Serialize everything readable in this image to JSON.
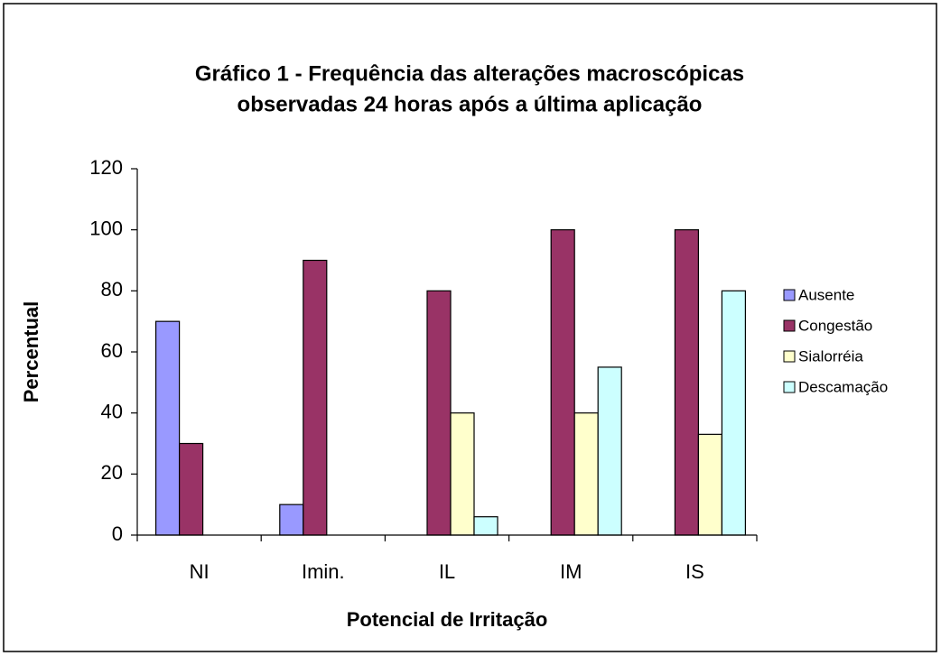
{
  "chart_data": {
    "type": "bar",
    "title": [
      "Gráfico 1 - Frequência das alterações macroscópicas",
      "observadas 24 horas após a última aplicação"
    ],
    "x_label": "Potencial de Irritação",
    "y_label": "Percentual",
    "categories": [
      "NI",
      "Imin.",
      "IL",
      "IM",
      "IS"
    ],
    "series": [
      {
        "name": "Ausente",
        "color": "#9999ff",
        "values": [
          70,
          10,
          0,
          0,
          0
        ]
      },
      {
        "name": "Congestão",
        "color": "#993366",
        "values": [
          30,
          90,
          80,
          100,
          100
        ]
      },
      {
        "name": "Sialorréia",
        "color": "#ffffcc",
        "values": [
          0,
          0,
          40,
          40,
          33
        ]
      },
      {
        "name": "Descamação",
        "color": "#ccffff",
        "values": [
          0,
          0,
          6,
          55,
          80
        ]
      }
    ],
    "ylim": [
      0,
      120
    ],
    "yticks": [
      0,
      20,
      40,
      60,
      80,
      100,
      120
    ],
    "grid": false,
    "legend": "right"
  }
}
